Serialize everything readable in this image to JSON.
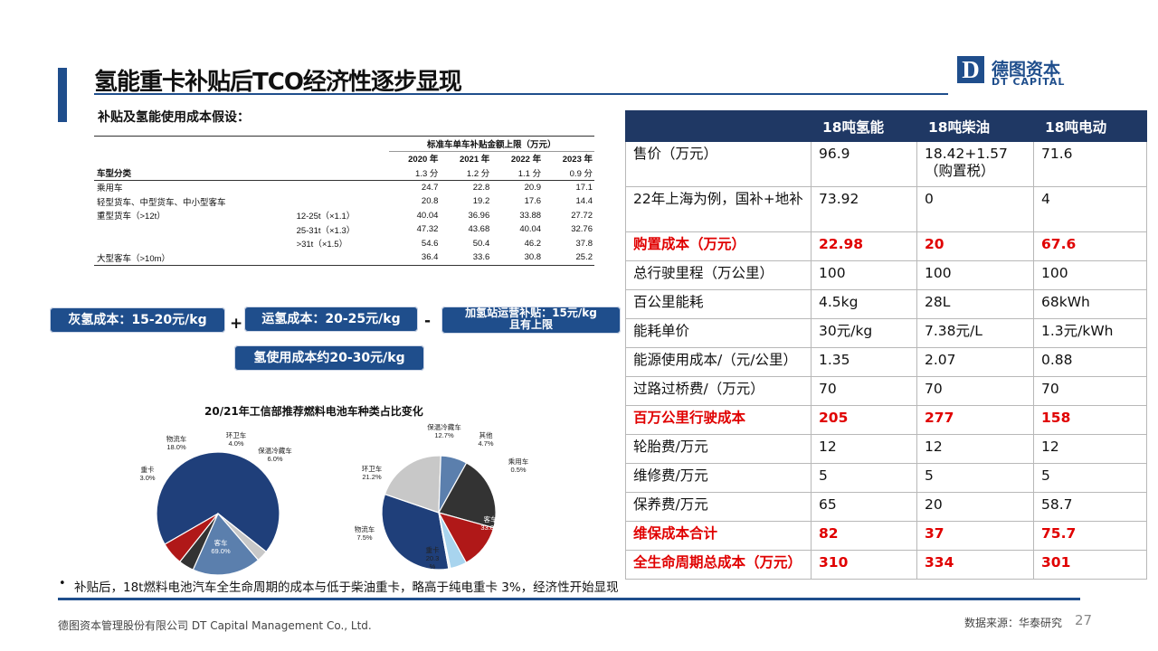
{
  "header": {
    "title": "氢能重卡补贴后TCO经济性逐步显现",
    "logo_mark": "D",
    "logo_cn": "德图资本",
    "logo_en": "DT CAPITAL"
  },
  "subsidy": {
    "section_title": "补贴及氢能使用成本假设：",
    "table_caption": "标准车单车补贴金额上限（万元）",
    "years": [
      "2020 年",
      "2021 年",
      "2022 年",
      "2023 年"
    ],
    "type_header": "车型分类",
    "points": [
      "1.3 分",
      "1.2 分",
      "1.1 分",
      "0.9 分"
    ],
    "rows": [
      {
        "label": "乘用车",
        "sub": "",
        "values": [
          "24.7",
          "22.8",
          "20.9",
          "17.1"
        ]
      },
      {
        "label": "轻型货车、中型货车、中小型客车",
        "sub": "",
        "values": [
          "20.8",
          "19.2",
          "17.6",
          "14.4"
        ]
      },
      {
        "label": "重型货车（>12t）",
        "sub": "12-25t（×1.1）",
        "values": [
          "40.04",
          "36.96",
          "33.88",
          "27.72"
        ]
      },
      {
        "label": "",
        "sub": "25-31t（×1.3）",
        "values": [
          "47.32",
          "43.68",
          "40.04",
          "32.76"
        ]
      },
      {
        "label": "",
        "sub": ">31t（×1.5）",
        "values": [
          "54.6",
          "50.4",
          "46.2",
          "37.8"
        ]
      },
      {
        "label": "大型客车（>10m）",
        "sub": "",
        "values": [
          "36.4",
          "33.6",
          "30.8",
          "25.2"
        ]
      }
    ]
  },
  "costs": {
    "grey": "灰氢成本：15-20元/kg",
    "plus": "+",
    "transport": "运氢成本：20-25元/kg",
    "minus": "-",
    "station_line1": "加氢站运营补贴：15元/kg",
    "station_line2": "且有上限",
    "total": "氢使用成本约20-30元/kg"
  },
  "chart_data": {
    "type": "pie",
    "title": "20/21年工信部推荐燃料电池车种类占比变化",
    "pies": [
      {
        "slices": [
          {
            "name": "客车",
            "value": 69.0,
            "color": "#1f3f7a"
          },
          {
            "name": "重卡",
            "value": 3.0,
            "color": "#c8c8c8"
          },
          {
            "name": "物流车",
            "value": 18.0,
            "color": "#5b7fad"
          },
          {
            "name": "环卫车",
            "value": 4.0,
            "color": "#333333"
          },
          {
            "name": "保温冷藏车",
            "value": 6.0,
            "color": "#b01818"
          }
        ],
        "labels": [
          "客车\n69.0%",
          "重卡\n3.0%",
          "物流车\n18.0%",
          "环卫车\n4.0%",
          "保温冷藏车\n6.0%"
        ]
      },
      {
        "slices": [
          {
            "name": "客车",
            "value": 33.0,
            "color": "#1f3f7a"
          },
          {
            "name": "重卡",
            "value": 20.3,
            "color": "#c8c8c8"
          },
          {
            "name": "物流车",
            "value": 7.5,
            "color": "#5b7fad"
          },
          {
            "name": "环卫车",
            "value": 21.2,
            "color": "#333333"
          },
          {
            "name": "保温冷藏车",
            "value": 12.7,
            "color": "#b01818"
          },
          {
            "name": "其他",
            "value": 4.7,
            "color": "#a8d4ee"
          },
          {
            "name": "乘用车",
            "value": 0.5,
            "color": "#e8e8e8"
          }
        ],
        "labels": [
          "客车\n33.0%",
          "重卡\n20.3\n%",
          "物流车\n7.5%",
          "环卫车\n21.2%",
          "保温冷藏车\n12.7%",
          "其他\n4.7%",
          "乘用车\n0.5%"
        ]
      }
    ]
  },
  "tco": {
    "headers": [
      "",
      "18吨氢能",
      "18吨柴油",
      "18吨电动"
    ],
    "rows": [
      {
        "cells": [
          "售价（万元）",
          "96.9",
          "18.42+1.57（购置税）",
          "71.6"
        ],
        "highlight": false,
        "tall": true
      },
      {
        "cells": [
          "22年上海为例，国补+地补",
          "73.92",
          "0",
          "4"
        ],
        "highlight": false,
        "tall": true
      },
      {
        "cells": [
          "购置成本（万元）",
          "22.98",
          "20",
          "67.6"
        ],
        "highlight": true,
        "tall": false
      },
      {
        "cells": [
          "总行驶里程（万公里）",
          "100",
          "100",
          "100"
        ],
        "highlight": false,
        "tall": false
      },
      {
        "cells": [
          "百公里能耗",
          "4.5kg",
          "28L",
          "68kWh"
        ],
        "highlight": false,
        "tall": false
      },
      {
        "cells": [
          "能耗单价",
          "30元/kg",
          "7.38元/L",
          "1.3元/kWh"
        ],
        "highlight": false,
        "tall": false
      },
      {
        "cells": [
          "能源使用成本/（元/公里）",
          "1.35",
          "2.07",
          "0.88"
        ],
        "highlight": false,
        "tall": false
      },
      {
        "cells": [
          "过路过桥费/（万元）",
          "70",
          "70",
          "70"
        ],
        "highlight": false,
        "tall": false
      },
      {
        "cells": [
          "百万公里行驶成本",
          "205",
          "277",
          "158"
        ],
        "highlight": true,
        "tall": false
      },
      {
        "cells": [
          "轮胎费/万元",
          "12",
          "12",
          "12"
        ],
        "highlight": false,
        "tall": false
      },
      {
        "cells": [
          "维修费/万元",
          "5",
          "5",
          "5"
        ],
        "highlight": false,
        "tall": false
      },
      {
        "cells": [
          "保养费/万元",
          "65",
          "20",
          "58.7"
        ],
        "highlight": false,
        "tall": false
      },
      {
        "cells": [
          "维保成本合计",
          "82",
          "37",
          "75.7"
        ],
        "highlight": true,
        "tall": false
      },
      {
        "cells": [
          "全生命周期总成本（万元）",
          "310",
          "334",
          "301"
        ],
        "highlight": true,
        "tall": false
      }
    ]
  },
  "bullet": "补贴后，18t燃料电池汽车全生命周期的成本与低于柴油重卡，略高于纯电重卡 3%，经济性开始显现",
  "footer": {
    "company": "德图资本管理股份有限公司  DT Capital Management  Co., Ltd.",
    "source": "数据来源：华泰研究",
    "page": "27"
  }
}
